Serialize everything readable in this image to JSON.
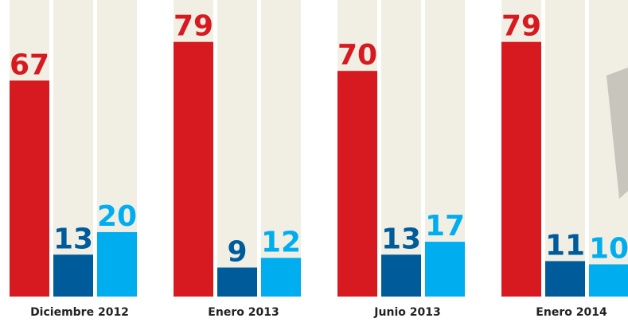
{
  "chart_data": {
    "type": "bar",
    "categories": [
      "Diciembre 2012",
      "Enero 2013",
      "Junio 2013",
      "Enero 2014"
    ],
    "series": [
      {
        "color": "#d71920",
        "values": [
          67,
          79,
          70,
          79
        ]
      },
      {
        "color": "#005b9a",
        "values": [
          13,
          9,
          13,
          11
        ]
      },
      {
        "color": "#00aeef",
        "values": [
          20,
          12,
          17,
          10
        ]
      }
    ],
    "ylim": [
      0,
      92
    ]
  }
}
